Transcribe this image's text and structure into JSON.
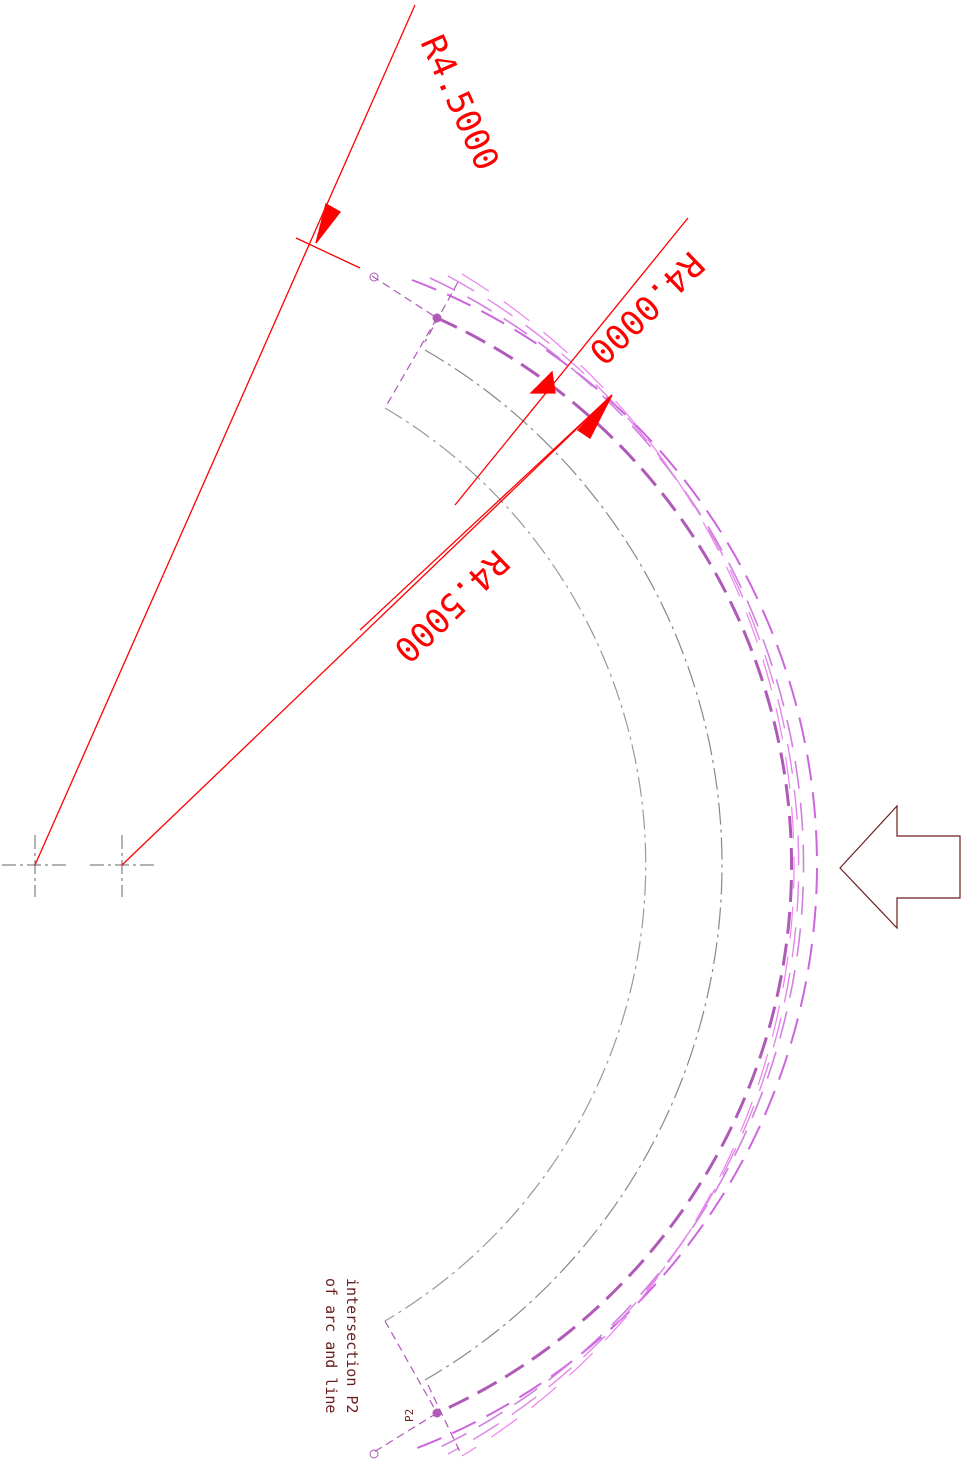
{
  "dimensions": {
    "top_radius": "R4.5000",
    "middle_radius": "R4.0000",
    "lower_radius": "R4.5000"
  },
  "annotations": {
    "point_label": "P2",
    "note_line1": "intersection P2",
    "note_line2": "of arc and line"
  },
  "colors": {
    "dimension": "#ff0000",
    "outer_arcs": "#ee82ee",
    "mid_arcs": "#cc66dd",
    "main_arc": "#b05ab8",
    "centerline": "#999999",
    "note": "#6b1e1e",
    "arrow_outline": "#6b1e1e"
  },
  "icons": {
    "direction_arrow": "left-arrow-icon",
    "center_mark": "crosshair-icon"
  }
}
